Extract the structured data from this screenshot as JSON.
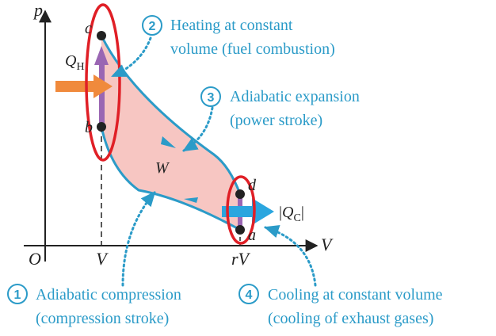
{
  "axes": {
    "y_label": "p",
    "x_label": "V",
    "origin_label": "O",
    "tick_v": "V",
    "tick_rv": "rV"
  },
  "points": {
    "a": "a",
    "b": "b",
    "c": "c",
    "d": "d"
  },
  "heat": {
    "qh_main": "Q",
    "qh_sub": "H",
    "qc_open": "|",
    "qc_main": "Q",
    "qc_sub": "C",
    "qc_close": "|"
  },
  "work_label": "W",
  "steps": [
    {
      "number": "2",
      "line1": "Heating at constant",
      "line2": "volume (fuel combustion)"
    },
    {
      "number": "3",
      "line1": "Adiabatic expansion",
      "line2": "(power stroke)"
    },
    {
      "number": "1",
      "line1": "Adiabatic compression",
      "line2": "(compression stroke)"
    },
    {
      "number": "4",
      "line1": "Cooling at constant volume",
      "line2": "(cooling of exhaust gases)"
    }
  ],
  "colors": {
    "process_curve": "#2b9bc8",
    "work_fill": "#f7c6c2",
    "highlight_ellipse": "#e01f26",
    "heat_in_arrow": "#f08a3c",
    "heat_out_arrow": "#2aa6df",
    "isochoric_arrow": "#9a66b3"
  }
}
